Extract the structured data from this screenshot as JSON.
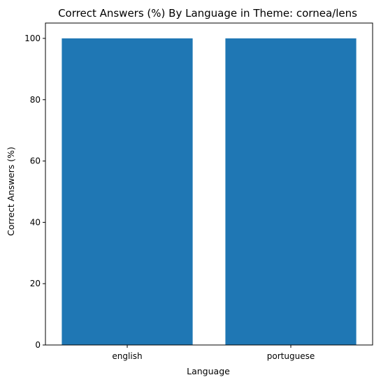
{
  "chart_data": {
    "type": "bar",
    "title": "Correct Answers (%) By Language in Theme: cornea/lens",
    "xlabel": "Language",
    "ylabel": "Correct Answers (%)",
    "categories": [
      "english",
      "portuguese"
    ],
    "values": [
      100,
      100
    ],
    "ylim": [
      0,
      105
    ],
    "yticks": [
      0,
      20,
      40,
      60,
      80,
      100
    ],
    "grid": false,
    "bar_color": "#1f77b4"
  }
}
